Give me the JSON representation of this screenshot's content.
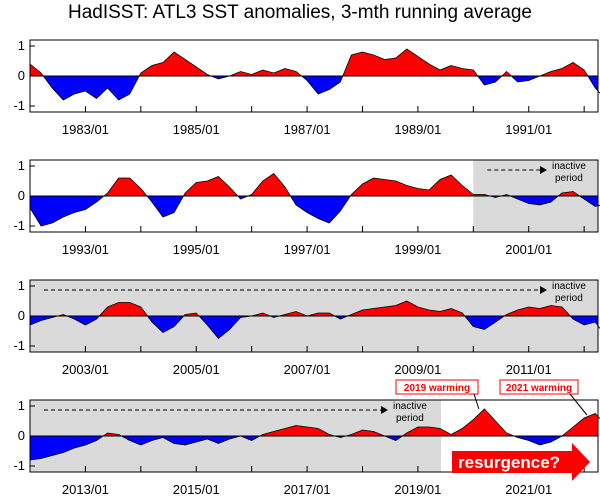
{
  "title": "HadISST: ATL3 SST anomalies, 3-mth running average",
  "colors": {
    "positive": "#ff0000",
    "negative": "#0000ff",
    "inactive_shade": "#dadada",
    "axis": "#000000",
    "callout": "#ff0000"
  },
  "chart_data": [
    {
      "type": "area",
      "xlim": [
        "1982/01",
        "1992/04"
      ],
      "ylim": [
        -1.2,
        1.2
      ],
      "yticks": [
        -1,
        0,
        1
      ],
      "xtick_labels": [
        "1983/01",
        "1985/01",
        "1987/01",
        "1989/01",
        "1991/01"
      ],
      "inactive_period": null,
      "x": [
        1982.0,
        1982.2,
        1982.4,
        1982.6,
        1982.8,
        1983.0,
        1983.2,
        1983.4,
        1983.6,
        1983.8,
        1984.0,
        1984.2,
        1984.4,
        1984.6,
        1984.8,
        1985.0,
        1985.2,
        1985.4,
        1985.6,
        1985.8,
        1986.0,
        1986.2,
        1986.4,
        1986.6,
        1986.8,
        1987.0,
        1987.2,
        1987.4,
        1987.6,
        1987.8,
        1988.0,
        1988.2,
        1988.4,
        1988.6,
        1988.8,
        1989.0,
        1989.2,
        1989.4,
        1989.6,
        1989.8,
        1990.0,
        1990.2,
        1990.4,
        1990.6,
        1990.8,
        1991.0,
        1991.2,
        1991.4,
        1991.6,
        1991.8,
        1992.0,
        1992.2,
        1992.3
      ],
      "y": [
        0.4,
        0.1,
        -0.4,
        -0.8,
        -0.6,
        -0.5,
        -0.75,
        -0.4,
        -0.8,
        -0.6,
        0.1,
        0.35,
        0.45,
        0.8,
        0.55,
        0.3,
        0.05,
        -0.1,
        0.0,
        0.15,
        0.05,
        0.2,
        0.1,
        0.25,
        0.15,
        -0.15,
        -0.6,
        -0.45,
        -0.2,
        0.7,
        0.8,
        0.7,
        0.55,
        0.6,
        0.9,
        0.65,
        0.4,
        0.2,
        0.35,
        0.25,
        0.2,
        -0.3,
        -0.2,
        0.15,
        -0.2,
        -0.15,
        0.0,
        0.15,
        0.25,
        0.45,
        0.2,
        -0.4,
        -0.6
      ]
    },
    {
      "type": "area",
      "xlim": [
        "1992/01",
        "2002/04"
      ],
      "ylim": [
        -1.2,
        1.2
      ],
      "yticks": [
        -1,
        0,
        1
      ],
      "xtick_labels": [
        "1993/01",
        "1995/01",
        "1997/01",
        "1999/01",
        "2001/01"
      ],
      "inactive_period": {
        "label_line1": "inactive",
        "label_line2": "period",
        "start": "2000/01"
      },
      "x": [
        1992.0,
        1992.2,
        1992.4,
        1992.6,
        1992.8,
        1993.0,
        1993.2,
        1993.4,
        1993.6,
        1993.8,
        1994.0,
        1994.2,
        1994.4,
        1994.6,
        1994.8,
        1995.0,
        1995.2,
        1995.4,
        1995.6,
        1995.8,
        1996.0,
        1996.2,
        1996.4,
        1996.6,
        1996.8,
        1997.0,
        1997.2,
        1997.4,
        1997.6,
        1997.8,
        1998.0,
        1998.2,
        1998.4,
        1998.6,
        1998.8,
        1999.0,
        1999.2,
        1999.4,
        1999.6,
        1999.8,
        2000.0,
        2000.2,
        2000.4,
        2000.6,
        2000.8,
        2001.0,
        2001.2,
        2001.4,
        2001.6,
        2001.8,
        2002.0,
        2002.2,
        2002.3
      ],
      "y": [
        -0.4,
        -1.0,
        -0.9,
        -0.7,
        -0.55,
        -0.45,
        -0.2,
        0.1,
        0.6,
        0.6,
        0.25,
        -0.2,
        -0.7,
        -0.55,
        0.1,
        0.45,
        0.5,
        0.65,
        0.3,
        -0.1,
        0.05,
        0.5,
        0.75,
        0.3,
        -0.3,
        -0.55,
        -0.75,
        -0.9,
        -0.5,
        0.05,
        0.4,
        0.6,
        0.55,
        0.5,
        0.35,
        0.25,
        0.2,
        0.55,
        0.7,
        0.35,
        0.05,
        0.05,
        -0.05,
        0.05,
        -0.1,
        -0.25,
        -0.3,
        -0.2,
        0.1,
        0.15,
        -0.1,
        -0.35,
        -0.3
      ]
    },
    {
      "type": "area",
      "xlim": [
        "2002/01",
        "2012/04"
      ],
      "ylim": [
        -1.2,
        1.2
      ],
      "yticks": [
        -1,
        0,
        1
      ],
      "xtick_labels": [
        "2003/01",
        "2005/01",
        "2007/01",
        "2009/01",
        "2011/01"
      ],
      "inactive_period": {
        "label_line1": "inactive",
        "label_line2": "period",
        "start": "2002/01"
      },
      "x": [
        2002.0,
        2002.2,
        2002.4,
        2002.6,
        2002.8,
        2003.0,
        2003.2,
        2003.4,
        2003.6,
        2003.8,
        2004.0,
        2004.2,
        2004.4,
        2004.6,
        2004.8,
        2005.0,
        2005.2,
        2005.4,
        2005.6,
        2005.8,
        2006.0,
        2006.2,
        2006.4,
        2006.6,
        2006.8,
        2007.0,
        2007.2,
        2007.4,
        2007.6,
        2007.8,
        2008.0,
        2008.2,
        2008.4,
        2008.6,
        2008.8,
        2009.0,
        2009.2,
        2009.4,
        2009.6,
        2009.8,
        2010.0,
        2010.2,
        2010.4,
        2010.6,
        2010.8,
        2011.0,
        2011.2,
        2011.4,
        2011.6,
        2011.8,
        2012.0,
        2012.2,
        2012.3
      ],
      "y": [
        -0.3,
        -0.15,
        -0.05,
        0.05,
        -0.1,
        -0.3,
        -0.1,
        0.3,
        0.45,
        0.45,
        0.3,
        -0.2,
        -0.55,
        -0.35,
        0.05,
        0.1,
        -0.3,
        -0.75,
        -0.45,
        -0.05,
        0.0,
        0.1,
        -0.05,
        0.05,
        0.15,
        0.0,
        0.1,
        0.1,
        -0.1,
        0.05,
        0.2,
        0.25,
        0.3,
        0.35,
        0.5,
        0.3,
        0.2,
        0.15,
        0.25,
        0.1,
        -0.35,
        -0.45,
        -0.2,
        0.05,
        0.2,
        0.3,
        0.25,
        0.35,
        0.3,
        -0.1,
        -0.3,
        -0.2,
        -0.45
      ]
    },
    {
      "type": "area",
      "xlim": [
        "2012/01",
        "2022/04"
      ],
      "ylim": [
        -1.2,
        1.2
      ],
      "yticks": [
        -1,
        0,
        1
      ],
      "xtick_labels": [
        "2013/01",
        "2015/01",
        "2017/01",
        "2019/01",
        "2021/01"
      ],
      "inactive_period": {
        "label_line1": "inactive",
        "label_line2": "period",
        "start": "2012/01",
        "end": "2019/06"
      },
      "annotations": [
        "2019 warming",
        "2021 warming",
        "resurgence?"
      ],
      "x": [
        2012.0,
        2012.2,
        2012.4,
        2012.6,
        2012.8,
        2013.0,
        2013.2,
        2013.4,
        2013.6,
        2013.8,
        2014.0,
        2014.2,
        2014.4,
        2014.6,
        2014.8,
        2015.0,
        2015.2,
        2015.4,
        2015.6,
        2015.8,
        2016.0,
        2016.2,
        2016.4,
        2016.6,
        2016.8,
        2017.0,
        2017.2,
        2017.4,
        2017.6,
        2017.8,
        2018.0,
        2018.2,
        2018.4,
        2018.6,
        2018.8,
        2019.0,
        2019.2,
        2019.4,
        2019.6,
        2019.8,
        2020.0,
        2020.2,
        2020.4,
        2020.6,
        2020.8,
        2021.0,
        2021.2,
        2021.4,
        2021.6,
        2021.8,
        2022.0,
        2022.2,
        2022.3
      ],
      "y": [
        -0.8,
        -0.75,
        -0.65,
        -0.55,
        -0.4,
        -0.3,
        -0.15,
        0.1,
        0.05,
        -0.15,
        -0.3,
        -0.15,
        -0.05,
        -0.25,
        -0.3,
        -0.2,
        -0.1,
        -0.25,
        -0.1,
        0.0,
        -0.15,
        0.05,
        0.15,
        0.25,
        0.35,
        0.3,
        0.25,
        0.05,
        -0.05,
        0.05,
        0.2,
        0.15,
        0.0,
        -0.15,
        0.1,
        0.3,
        0.3,
        0.25,
        0.05,
        0.25,
        0.55,
        0.9,
        0.5,
        0.1,
        -0.05,
        -0.15,
        -0.3,
        -0.2,
        0.0,
        0.3,
        0.6,
        0.75,
        0.55
      ]
    }
  ]
}
